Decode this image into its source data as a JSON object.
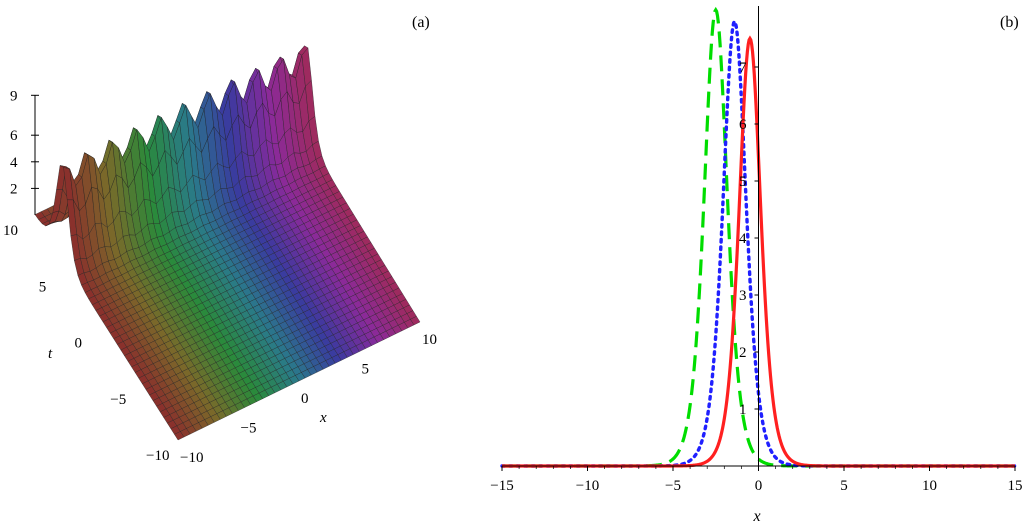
{
  "figure": {
    "panel_a_label": "(a)",
    "panel_b_label": "(b)"
  },
  "chart_data": [
    {
      "type": "surface",
      "panel": "(a)",
      "z_ticks": [
        "9",
        "6",
        "4",
        "2"
      ],
      "t_ticks": [
        "10",
        "5",
        "0",
        "−5",
        "−10"
      ],
      "x_ticks": [
        "10",
        "5",
        "0",
        "−5",
        "−10"
      ],
      "t_label": "t",
      "x_label": "x",
      "t_range": [
        -10,
        10
      ],
      "x_range": [
        -10,
        10
      ],
      "z_range": [
        0,
        9
      ],
      "description_colors": [
        "#8b2c2c",
        "#7a6a2a",
        "#2a8a3a",
        "#2a7a8a",
        "#3a3aa0",
        "#8a2a9a",
        "#a02a5a"
      ]
    },
    {
      "type": "line",
      "panel": "(b)",
      "xlabel": "x",
      "xlim": [
        -15,
        15
      ],
      "ylim": [
        0,
        8
      ],
      "x_ticks": [
        -15,
        -10,
        -5,
        0,
        5,
        10,
        15
      ],
      "x_tick_labels": [
        "−15",
        "−10",
        "−5",
        "0",
        "5",
        "10",
        "15"
      ],
      "y_ticks": [
        1,
        2,
        3,
        4,
        5,
        6,
        7
      ],
      "y_tick_labels": [
        "1",
        "2",
        "3",
        "4",
        "5",
        "6",
        "7"
      ],
      "series": [
        {
          "center": -2.5,
          "peak": 8.0,
          "width": 0.9,
          "color": "#00dd00",
          "style": "dashed"
        },
        {
          "center": -1.4,
          "peak": 7.8,
          "width": 0.9,
          "color": "#2020ff",
          "style": "dotted"
        },
        {
          "center": -0.5,
          "peak": 7.5,
          "width": 0.85,
          "color": "#ff2020",
          "style": "solid"
        }
      ]
    }
  ]
}
